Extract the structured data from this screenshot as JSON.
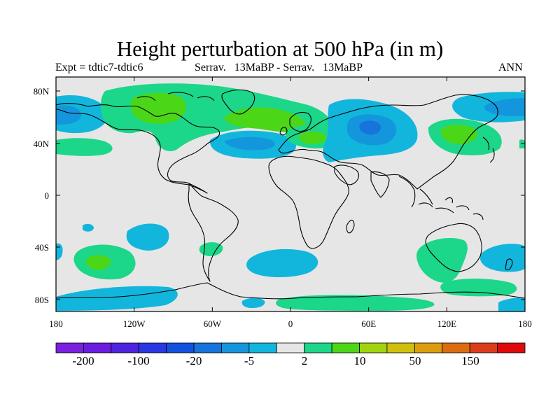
{
  "title": "Height perturbation at 500 hPa (in m)",
  "left_string": "Expt = tdtic7-tdtic6",
  "center_string": "Serrav.   13MaBP - Serrav.   13MaBP",
  "right_string": "ANN",
  "map": {
    "background_color": "#e6e6e6",
    "lat_ticks": [
      "80N",
      "40N",
      "0",
      "40S",
      "80S"
    ],
    "lon_ticks": [
      "180",
      "120W",
      "60W",
      "0",
      "60E",
      "120E",
      "180"
    ]
  },
  "labelbar": {
    "colors": [
      "#7b1fe0",
      "#6a1ce0",
      "#4f24e0",
      "#2a37e4",
      "#1352e0",
      "#1674dc",
      "#1496dc",
      "#12b6dc",
      "#e6e6e6",
      "#1cd68a",
      "#4cd618",
      "#a2d40c",
      "#d0c00c",
      "#dc9c0c",
      "#dc6c10",
      "#dc3c1a",
      "#e00a0a"
    ],
    "labels": [
      "-200",
      "-100",
      "-20",
      "-5",
      "2",
      "10",
      "50",
      "150"
    ]
  },
  "legend_levels": {
    "blue_fill": "#12b6dc",
    "blue_medium": "#1496dc",
    "green_fill": "#1cd68a",
    "green_strong": "#4cd618"
  }
}
